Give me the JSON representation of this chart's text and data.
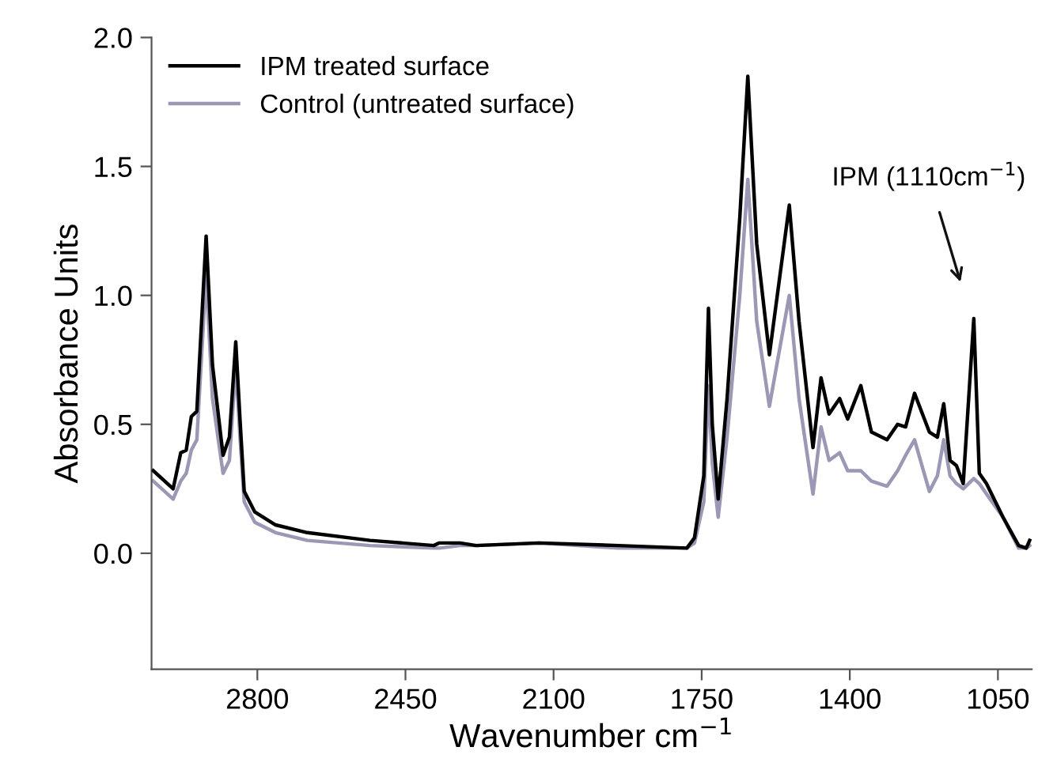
{
  "chart_data": {
    "type": "line",
    "xlabel": "Wavenumber cm$^{−1}$",
    "ylabel": "Absorbance Units",
    "x": [
      3046,
      2999,
      2981,
      2968,
      2956,
      2943,
      2921,
      2906,
      2881,
      2866,
      2851,
      2841,
      2831,
      2806,
      2757,
      2682,
      2534,
      2383,
      2370,
      2321,
      2283,
      2134,
      1947,
      1785,
      1767,
      1745,
      1734,
      1725,
      1711,
      1690,
      1660,
      1641,
      1620,
      1590,
      1543,
      1520,
      1487,
      1468,
      1449,
      1424,
      1405,
      1374,
      1349,
      1312,
      1287,
      1268,
      1247,
      1212,
      1193,
      1178,
      1163,
      1148,
      1132,
      1107,
      1094,
      1077,
      1038,
      1001,
      983,
      975
    ],
    "series": [
      {
        "name": "IPM treated surface",
        "color": "#000000",
        "values": [
          0.32,
          0.25,
          0.39,
          0.4,
          0.53,
          0.55,
          1.23,
          0.73,
          0.38,
          0.45,
          0.82,
          0.52,
          0.24,
          0.16,
          0.11,
          0.08,
          0.05,
          0.03,
          0.04,
          0.04,
          0.03,
          0.04,
          0.03,
          0.02,
          0.06,
          0.3,
          0.95,
          0.5,
          0.21,
          0.6,
          1.3,
          1.85,
          1.2,
          0.77,
          1.35,
          0.9,
          0.41,
          0.68,
          0.54,
          0.6,
          0.52,
          0.65,
          0.47,
          0.44,
          0.5,
          0.49,
          0.62,
          0.47,
          0.45,
          0.58,
          0.36,
          0.34,
          0.27,
          0.91,
          0.31,
          0.27,
          0.14,
          0.03,
          0.02,
          0.05
        ]
      },
      {
        "name": "Control (untreated surface)",
        "color": "#9a98b5",
        "values": [
          0.28,
          0.21,
          0.28,
          0.31,
          0.4,
          0.44,
          1.08,
          0.6,
          0.31,
          0.36,
          0.73,
          0.45,
          0.2,
          0.12,
          0.08,
          0.05,
          0.03,
          0.02,
          0.02,
          0.03,
          0.03,
          0.04,
          0.02,
          0.02,
          0.04,
          0.2,
          0.65,
          0.35,
          0.14,
          0.45,
          1.0,
          1.45,
          0.9,
          0.57,
          1.0,
          0.6,
          0.23,
          0.49,
          0.36,
          0.39,
          0.32,
          0.32,
          0.28,
          0.26,
          0.32,
          0.38,
          0.44,
          0.24,
          0.3,
          0.44,
          0.3,
          0.27,
          0.25,
          0.29,
          0.27,
          0.23,
          0.14,
          0.02,
          0.02,
          0.03
        ]
      }
    ],
    "xlim": [
      3050,
      970
    ],
    "ylim": [
      -0.45,
      2.0
    ],
    "xticks": [
      2800,
      2450,
      2100,
      1750,
      1400,
      1050
    ],
    "yticks": [
      {
        "value": 0,
        "label": "0.0"
      },
      {
        "value": 0.5,
        "label": "0.5"
      },
      {
        "value": 1,
        "label": "1.0"
      },
      {
        "value": 1.5,
        "label": "1.5"
      },
      {
        "value": 2,
        "label": "2.0"
      }
    ],
    "annotations": [
      "IPM (1110cm$^{−1}$)"
    ],
    "legend": "top left",
    "grid": false,
    "marker": "none",
    "line_style": "solid"
  }
}
